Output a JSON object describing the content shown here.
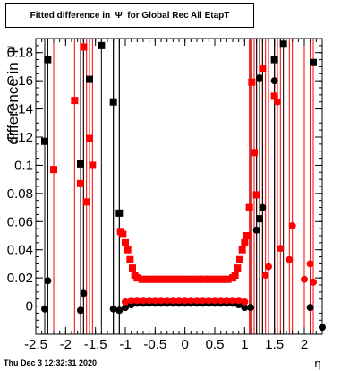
{
  "title": "Fitted difference in  Ψ  for Global Rec All EtapT",
  "footer": "Thu Dec  3 12:32:31 2020",
  "chart_data": {
    "type": "scatter",
    "xlabel": "η",
    "ylabel": "difference in Ψ",
    "xlim": [
      -2.5,
      2.3
    ],
    "ylim": [
      -0.02,
      0.19
    ],
    "x_ticks": [
      "-2.5",
      "-2",
      "-1.5",
      "-1",
      "-0.5",
      "0",
      "0.5",
      "1",
      "1.5",
      "2"
    ],
    "y_ticks": [
      "0",
      "0.02",
      "0.04",
      "0.06",
      "0.08",
      "0.1",
      "0.12",
      "0.14",
      "0.16",
      "0.18"
    ],
    "grid": false,
    "series": [
      {
        "marker": "square-black",
        "color": "#000000",
        "points": [
          [
            -2.35,
            0.117
          ],
          [
            -2.3,
            0.175
          ],
          [
            -1.75,
            0.101
          ],
          [
            -1.6,
            0.161
          ],
          [
            -1.4,
            0.185
          ],
          [
            -1.2,
            0.145
          ],
          [
            -1.1,
            0.066
          ],
          [
            1.25,
            0.062
          ],
          [
            1.5,
            0.175
          ],
          [
            1.65,
            0.186
          ],
          [
            2.15,
            0.173
          ]
        ]
      },
      {
        "marker": "square-red",
        "color": "#ff0000",
        "points": [
          [
            -2.2,
            0.097
          ],
          [
            -1.85,
            0.146
          ],
          [
            -1.75,
            0.087
          ],
          [
            -1.7,
            0.184
          ],
          [
            -1.65,
            0.074
          ],
          [
            -1.6,
            0.119
          ],
          [
            -1.55,
            0.1
          ],
          [
            -1.08,
            0.053
          ],
          [
            -1.04,
            0.051
          ],
          [
            -1.0,
            0.045
          ],
          [
            -0.96,
            0.04
          ],
          [
            -0.92,
            0.033
          ],
          [
            -0.88,
            0.027
          ],
          [
            -0.84,
            0.022
          ],
          [
            -0.8,
            0.02
          ],
          [
            -0.72,
            0.019
          ],
          [
            -0.64,
            0.019
          ],
          [
            -0.56,
            0.019
          ],
          [
            -0.48,
            0.019
          ],
          [
            -0.4,
            0.019
          ],
          [
            -0.32,
            0.019
          ],
          [
            -0.24,
            0.019
          ],
          [
            -0.16,
            0.019
          ],
          [
            -0.08,
            0.019
          ],
          [
            0.0,
            0.019
          ],
          [
            0.08,
            0.019
          ],
          [
            0.16,
            0.019
          ],
          [
            0.24,
            0.019
          ],
          [
            0.32,
            0.019
          ],
          [
            0.4,
            0.019
          ],
          [
            0.48,
            0.019
          ],
          [
            0.56,
            0.019
          ],
          [
            0.64,
            0.019
          ],
          [
            0.72,
            0.019
          ],
          [
            0.8,
            0.02
          ],
          [
            0.84,
            0.022
          ],
          [
            0.88,
            0.027
          ],
          [
            0.92,
            0.033
          ],
          [
            0.96,
            0.04
          ],
          [
            1.0,
            0.045
          ],
          [
            1.04,
            0.05
          ],
          [
            1.08,
            0.07
          ],
          [
            1.12,
            0.159
          ],
          [
            1.16,
            0.109
          ],
          [
            1.2,
            0.079
          ],
          [
            1.3,
            0.169
          ],
          [
            1.5,
            0.149
          ]
        ]
      },
      {
        "marker": "circle-black",
        "color": "#000000",
        "points": [
          [
            -2.35,
            -0.002
          ],
          [
            -2.3,
            0.018
          ],
          [
            -1.75,
            -0.003
          ],
          [
            -1.7,
            0.009
          ],
          [
            -1.2,
            -0.002
          ],
          [
            -1.1,
            -0.003
          ],
          [
            -1.0,
            -0.001
          ],
          [
            -0.9,
            0.001
          ],
          [
            -0.8,
            0.002
          ],
          [
            -0.7,
            0.002
          ],
          [
            -0.6,
            0.002
          ],
          [
            -0.5,
            0.002
          ],
          [
            -0.4,
            0.002
          ],
          [
            -0.3,
            0.002
          ],
          [
            -0.2,
            0.002
          ],
          [
            -0.1,
            0.002
          ],
          [
            0.0,
            0.002
          ],
          [
            0.1,
            0.002
          ],
          [
            0.2,
            0.002
          ],
          [
            0.3,
            0.002
          ],
          [
            0.4,
            0.002
          ],
          [
            0.5,
            0.002
          ],
          [
            0.6,
            0.002
          ],
          [
            0.7,
            0.002
          ],
          [
            0.8,
            0.002
          ],
          [
            0.9,
            0.001
          ],
          [
            1.0,
            -0.001
          ],
          [
            1.1,
            -0.001
          ],
          [
            1.2,
            0.054
          ],
          [
            1.25,
            0.162
          ],
          [
            1.3,
            0.07
          ],
          [
            1.5,
            0.16
          ],
          [
            2.1,
            -0.001
          ],
          [
            2.3,
            -0.015
          ]
        ]
      },
      {
        "marker": "circle-red",
        "color": "#ff0000",
        "points": [
          [
            -1.0,
            0.003
          ],
          [
            -0.9,
            0.004
          ],
          [
            -0.8,
            0.004
          ],
          [
            -0.7,
            0.004
          ],
          [
            -0.6,
            0.004
          ],
          [
            -0.5,
            0.004
          ],
          [
            -0.4,
            0.004
          ],
          [
            -0.3,
            0.004
          ],
          [
            -0.2,
            0.004
          ],
          [
            -0.1,
            0.004
          ],
          [
            0.0,
            0.004
          ],
          [
            0.1,
            0.004
          ],
          [
            0.2,
            0.004
          ],
          [
            0.3,
            0.004
          ],
          [
            0.4,
            0.004
          ],
          [
            0.5,
            0.004
          ],
          [
            0.6,
            0.004
          ],
          [
            0.7,
            0.004
          ],
          [
            0.8,
            0.004
          ],
          [
            0.9,
            0.004
          ],
          [
            1.0,
            0.003
          ],
          [
            1.35,
            0.022
          ],
          [
            1.4,
            0.028
          ],
          [
            1.55,
            0.145
          ],
          [
            1.6,
            0.041
          ],
          [
            1.75,
            0.033
          ],
          [
            1.8,
            0.057
          ],
          [
            2.0,
            0.019
          ],
          [
            2.1,
            0.03
          ],
          [
            2.15,
            0.017
          ]
        ]
      }
    ]
  }
}
